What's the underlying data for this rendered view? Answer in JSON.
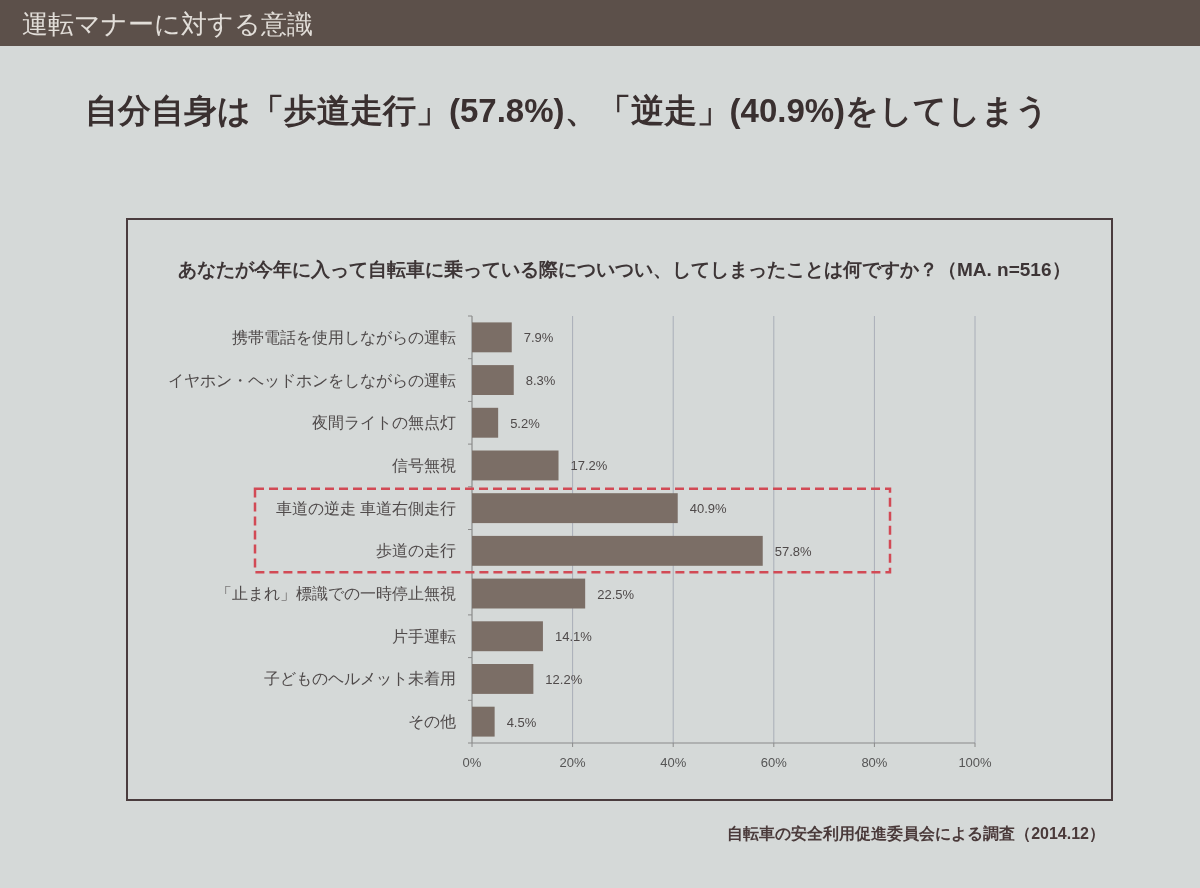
{
  "chart_data": {
    "type": "bar",
    "orientation": "horizontal",
    "title": "運転マナーに対する意識",
    "subtitle": "自分自身は「歩道走行」(57.8%)、「逆走」(40.9%)をしてしまう",
    "annotations": [
      "あなたが今年に入って自転車に乗っている際についつい、してしまったことは何ですか？（MA. n=516）",
      "自転車の安全利用促進委員会による調査（2014.12）"
    ],
    "categories": [
      "携帯電話を使用しながらの運転",
      "イヤホン・ヘッドホンをしながらの運転",
      "夜間ライトの無点灯",
      "信号無視",
      "車道の逆走 車道右側走行",
      "歩道の走行",
      "「止まれ」標識での一時停止無視",
      "片手運転",
      "子どものヘルメット未着用",
      "その他"
    ],
    "values": [
      7.9,
      8.3,
      5.2,
      17.2,
      40.9,
      57.8,
      22.5,
      14.1,
      12.2,
      4.5
    ],
    "value_labels": [
      "7.9%",
      "8.3%",
      "5.2%",
      "17.2%",
      "40.9%",
      "57.8%",
      "22.5%",
      "14.1%",
      "12.2%",
      "4.5%"
    ],
    "color": "#7b6e66",
    "xlim": [
      0,
      100
    ],
    "xticks": [
      {
        "value": 0,
        "label": "0%"
      },
      {
        "value": 20,
        "label": "20%"
      },
      {
        "value": 40,
        "label": "40%"
      },
      {
        "value": 60,
        "label": "60%"
      },
      {
        "value": 80,
        "label": "80%"
      },
      {
        "value": 100,
        "label": "100%"
      }
    ],
    "grid": "x"
  }
}
